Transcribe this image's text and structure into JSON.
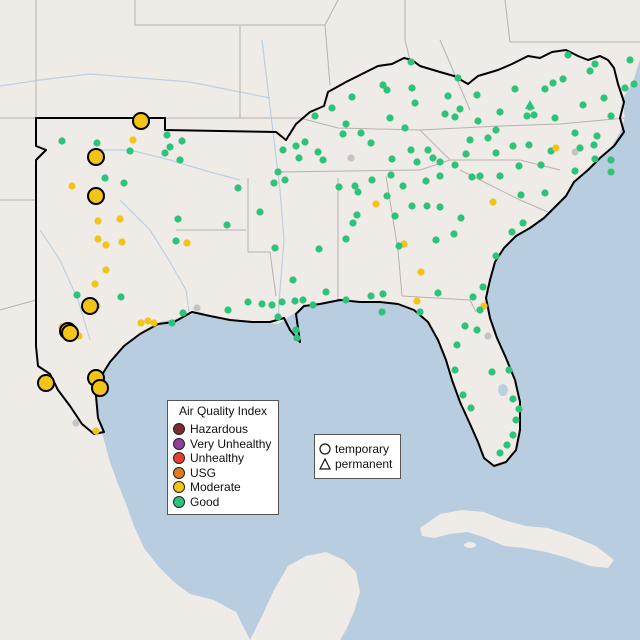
{
  "legend": {
    "title": "Air Quality Index",
    "categories": [
      {
        "label": "Hazardous",
        "color": "#7e2a2a"
      },
      {
        "label": "Very Unhealthy",
        "color": "#8f3f97"
      },
      {
        "label": "Unhealthy",
        "color": "#e8402f"
      },
      {
        "label": "USG",
        "color": "#e07a1f"
      },
      {
        "label": "Moderate",
        "color": "#f2c417"
      },
      {
        "label": "Good",
        "color": "#2ec27a"
      }
    ]
  },
  "monitor_types": [
    {
      "label": "temporary",
      "icon": "circle-icon"
    },
    {
      "label": "permanent",
      "icon": "triangle-icon"
    }
  ],
  "colors": {
    "ocean": "#b8cde0",
    "land": "#efebe6",
    "boundary": "#000000",
    "state_line": "#b7b2ad",
    "river": "#bcd0e2",
    "no_data": "#c4c4c4"
  }
}
